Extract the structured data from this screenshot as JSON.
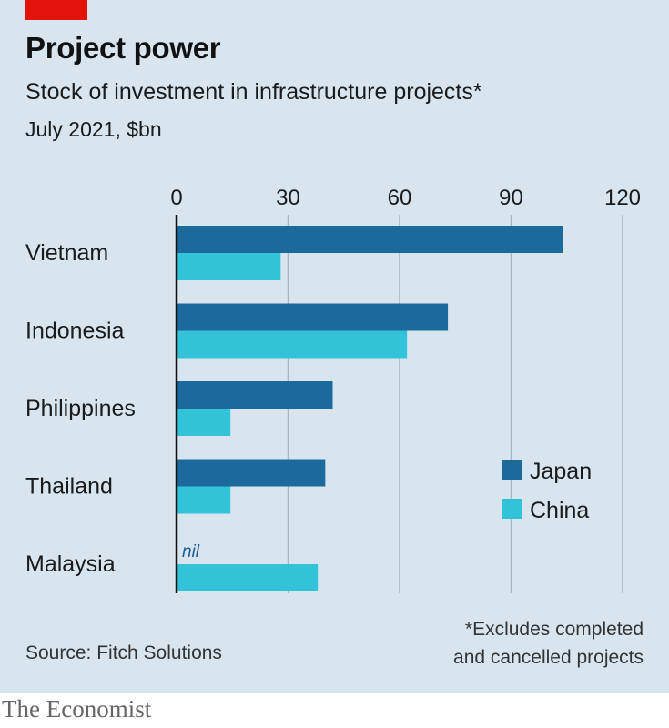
{
  "header": {
    "title": "Project power",
    "subtitle": "Stock of investment in infrastructure projects*",
    "unit": "July 2021, $bn"
  },
  "footer": {
    "source": "Source: Fitch Solutions",
    "footnote_line1": "*Excludes completed",
    "footnote_line2": "and cancelled projects",
    "brand": "The Economist"
  },
  "colors": {
    "japan": "#1c6a9c",
    "china": "#33c3d8",
    "gridline": "#a9b6c0",
    "axis": "#121212",
    "panel": "#d9e5ee",
    "brand_red": "#e3120b"
  },
  "chart_data": {
    "type": "bar",
    "orientation": "horizontal",
    "title": "Project power",
    "subtitle": "Stock of investment in infrastructure projects*",
    "xlabel": "July 2021, $bn",
    "ylabel": "",
    "xlim": [
      0,
      120
    ],
    "xticks": [
      0,
      30,
      60,
      90,
      120
    ],
    "grid": true,
    "legend_position": "right-middle",
    "categories": [
      "Vietnam",
      "Indonesia",
      "Philippines",
      "Thailand",
      "Malaysia"
    ],
    "series": [
      {
        "name": "Japan",
        "values": [
          104,
          73,
          42,
          40,
          null
        ]
      },
      {
        "name": "China",
        "values": [
          28,
          62,
          14.5,
          14.5,
          38
        ]
      }
    ],
    "annotations": [
      {
        "category": "Malaysia",
        "series": "Japan",
        "text": "nil"
      }
    ]
  }
}
